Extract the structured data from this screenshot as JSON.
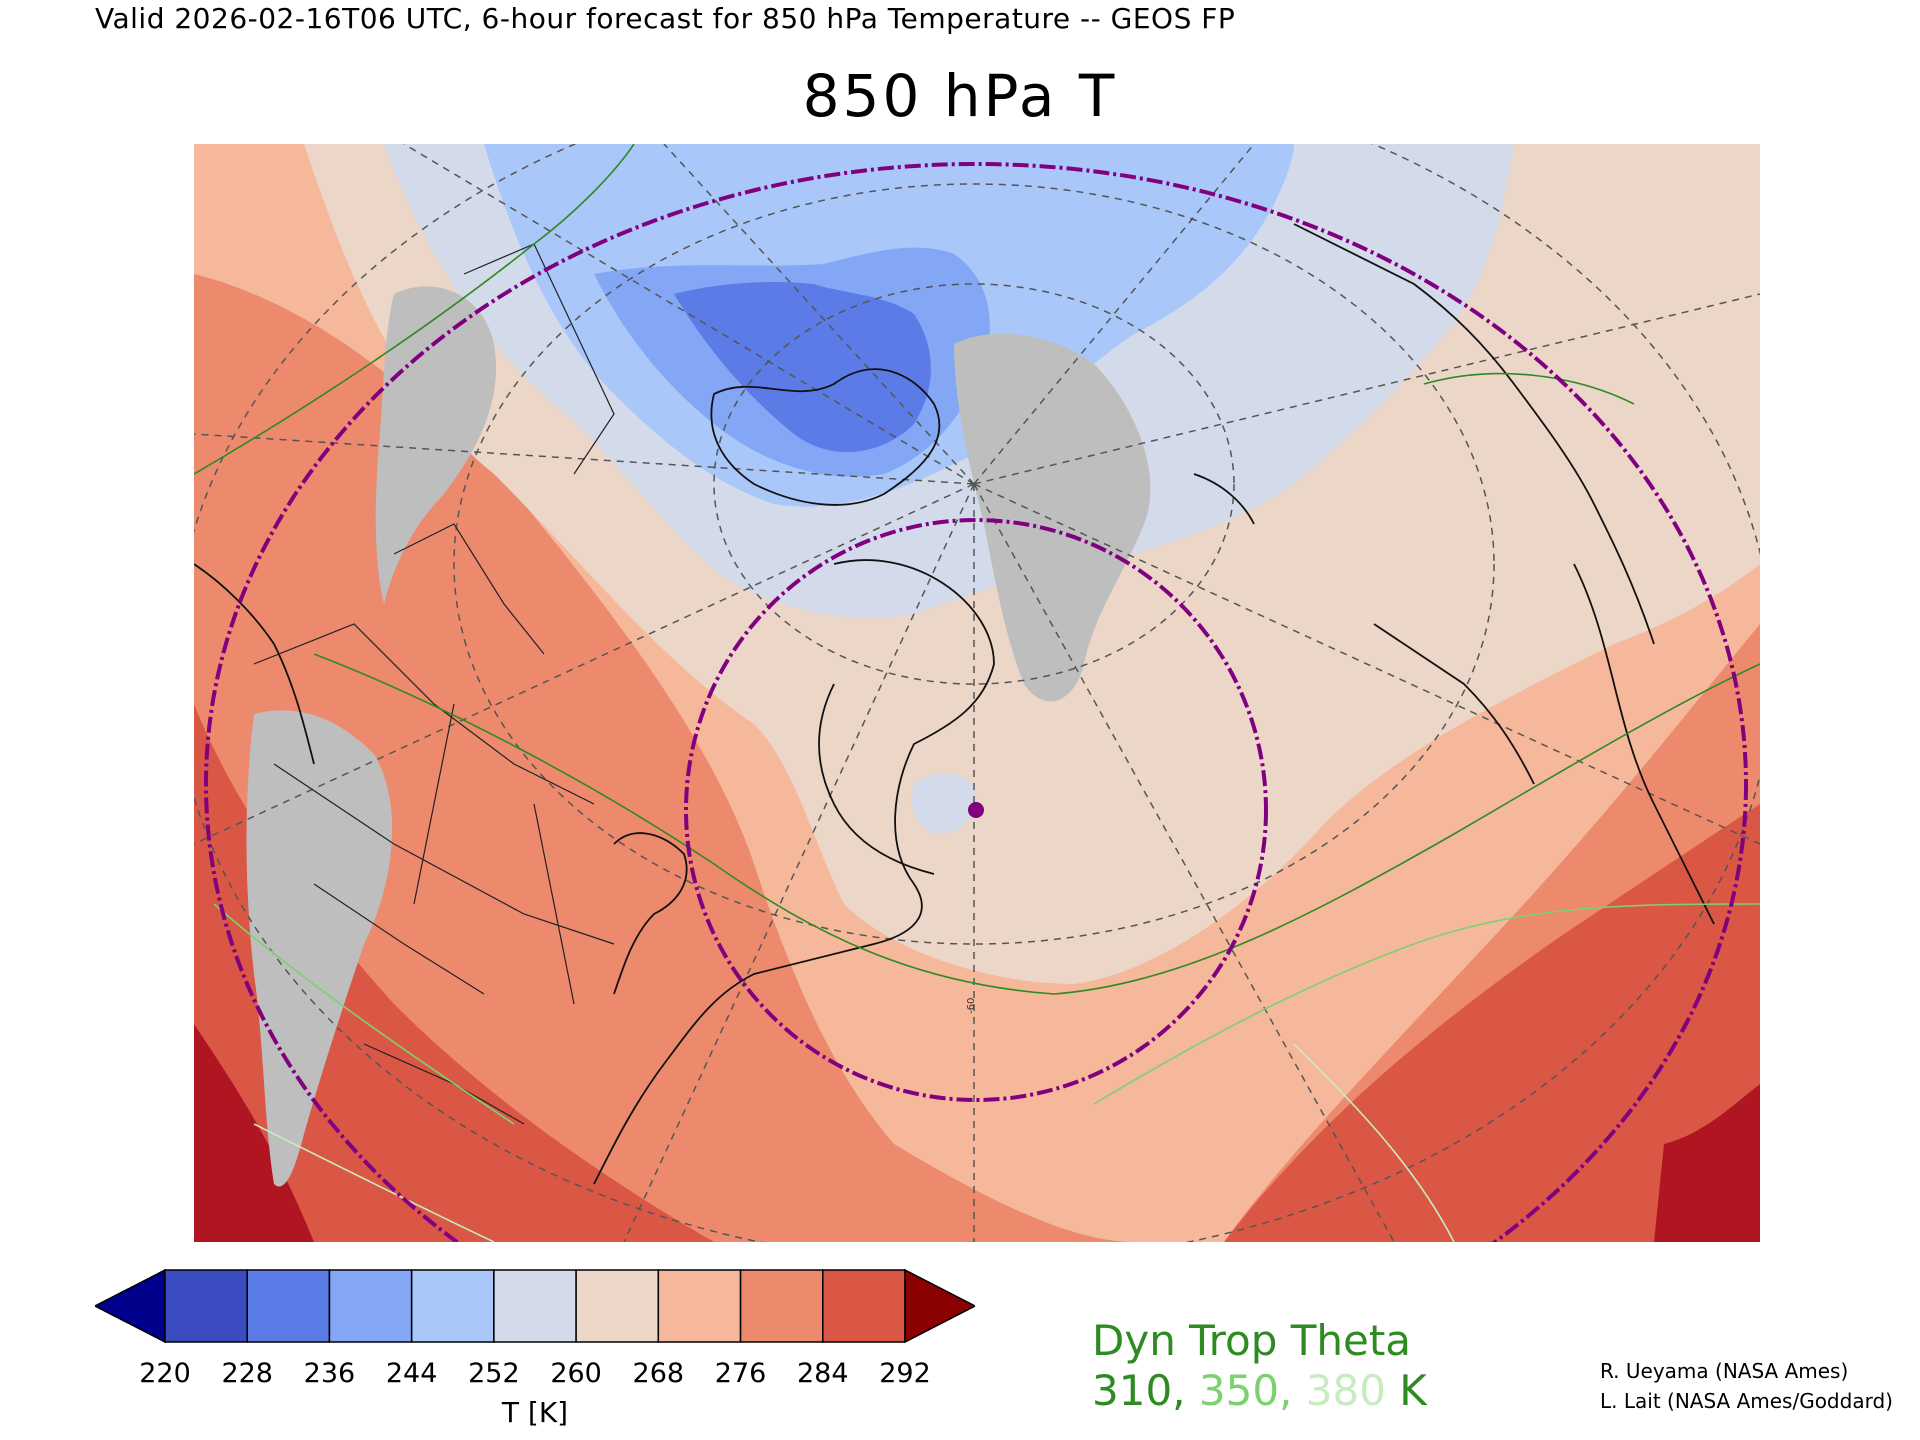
{
  "header": {
    "valid_line": "Valid 2026-02-16T06 UTC, 6-hour forecast for 850 hPa Temperature -- GEOS FP",
    "title": "850 hPa T"
  },
  "map": {
    "projection": "polar-stereographic",
    "fill_field": "850 hPa temperature",
    "missing_color": "#bebebe",
    "marker_color": "#800080",
    "range_ring_color": "#800080",
    "contour_label": "-60"
  },
  "colorbar": {
    "title": "T [K]",
    "ticks": [
      "220",
      "228",
      "236",
      "244",
      "252",
      "260",
      "268",
      "276",
      "284",
      "292"
    ],
    "colors": [
      "#00008b",
      "#3b4cc0",
      "#5b7be6",
      "#83a6f5",
      "#aac7fa",
      "#d3dbea",
      "#ecd6c8",
      "#f6b89a",
      "#ed8a6d",
      "#da5746",
      "#8b0000"
    ]
  },
  "legend": {
    "title": "Dyn Trop Theta",
    "values": [
      {
        "text": "310",
        "color": "#2e8b22"
      },
      {
        "text": "350",
        "color": "#7cd26f"
      },
      {
        "text": "380",
        "color": "#c6ecc0"
      }
    ],
    "unit": "K",
    "colors": {
      "title": "#2e8b22",
      "unit": "#2e8b22"
    }
  },
  "credits": {
    "line1": "R. Ueyama (NASA Ames)",
    "line2": "L. Lait (NASA Ames/Goddard)"
  }
}
